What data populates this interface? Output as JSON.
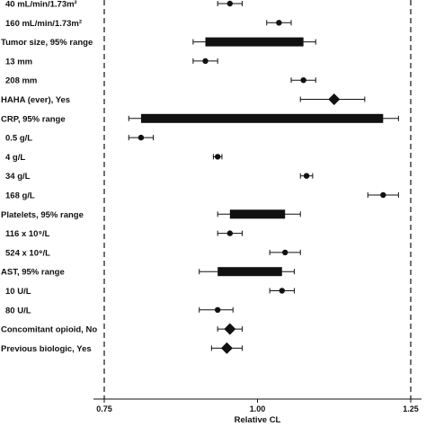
{
  "chart_data": {
    "type": "forest",
    "xlabel": "Relative CL",
    "xlim": [
      0.75,
      1.25
    ],
    "xticks": [
      0.75,
      1.0,
      1.25
    ],
    "xtick_labels": [
      "0.75",
      "1.00",
      "1.25"
    ],
    "reference_lines": [
      0.75,
      1.25
    ],
    "rows": [
      {
        "label": "40 mL/min/1.73m²",
        "kind": "point",
        "est": 0.955,
        "low": 0.935,
        "high": 0.975
      },
      {
        "label": "160 mL/min/1.73m²",
        "kind": "point",
        "est": 1.035,
        "low": 1.015,
        "high": 1.055
      },
      {
        "label": "Tumor size, 95% range",
        "kind": "range",
        "low": 0.915,
        "high": 1.075,
        "whisker_low": 0.895,
        "whisker_high": 1.095
      },
      {
        "label": "13 mm",
        "kind": "point",
        "est": 0.915,
        "low": 0.895,
        "high": 0.935
      },
      {
        "label": "208 mm",
        "kind": "point",
        "est": 1.075,
        "low": 1.055,
        "high": 1.095
      },
      {
        "label": "HAHA (ever), Yes",
        "kind": "diamond",
        "est": 1.125,
        "low": 1.07,
        "high": 1.175
      },
      {
        "label": "CRP, 95% range",
        "kind": "range",
        "low": 0.81,
        "high": 1.205,
        "whisker_low": 0.79,
        "whisker_high": 1.23
      },
      {
        "label": "0.5 g/L",
        "kind": "point",
        "est": 0.81,
        "low": 0.79,
        "high": 0.83
      },
      {
        "label": "4 g/L",
        "kind": "point",
        "est": 0.935,
        "low": 0.928,
        "high": 0.942
      },
      {
        "label": "34 g/L",
        "kind": "point",
        "est": 1.08,
        "low": 1.07,
        "high": 1.09
      },
      {
        "label": "168 g/L",
        "kind": "point",
        "est": 1.205,
        "low": 1.18,
        "high": 1.23
      },
      {
        "label": "Platelets, 95% range",
        "kind": "range",
        "low": 0.955,
        "high": 1.045,
        "whisker_low": 0.935,
        "whisker_high": 1.07
      },
      {
        "label": "116 x 10⁹/L",
        "kind": "point",
        "est": 0.955,
        "low": 0.935,
        "high": 0.975
      },
      {
        "label": "524 x 10⁹/L",
        "kind": "point",
        "est": 1.045,
        "low": 1.02,
        "high": 1.07
      },
      {
        "label": "AST, 95% range",
        "kind": "range",
        "low": 0.935,
        "high": 1.04,
        "whisker_low": 0.905,
        "whisker_high": 1.06
      },
      {
        "label": "10 U/L",
        "kind": "point",
        "est": 1.04,
        "low": 1.02,
        "high": 1.06
      },
      {
        "label": "80 U/L",
        "kind": "point",
        "est": 0.935,
        "low": 0.905,
        "high": 0.96
      },
      {
        "label": "Concomitant opioid, No",
        "kind": "diamond",
        "est": 0.955,
        "low": 0.935,
        "high": 0.975
      },
      {
        "label": "Previous biologic, Yes",
        "kind": "diamond",
        "est": 0.95,
        "low": 0.925,
        "high": 0.975
      }
    ]
  }
}
